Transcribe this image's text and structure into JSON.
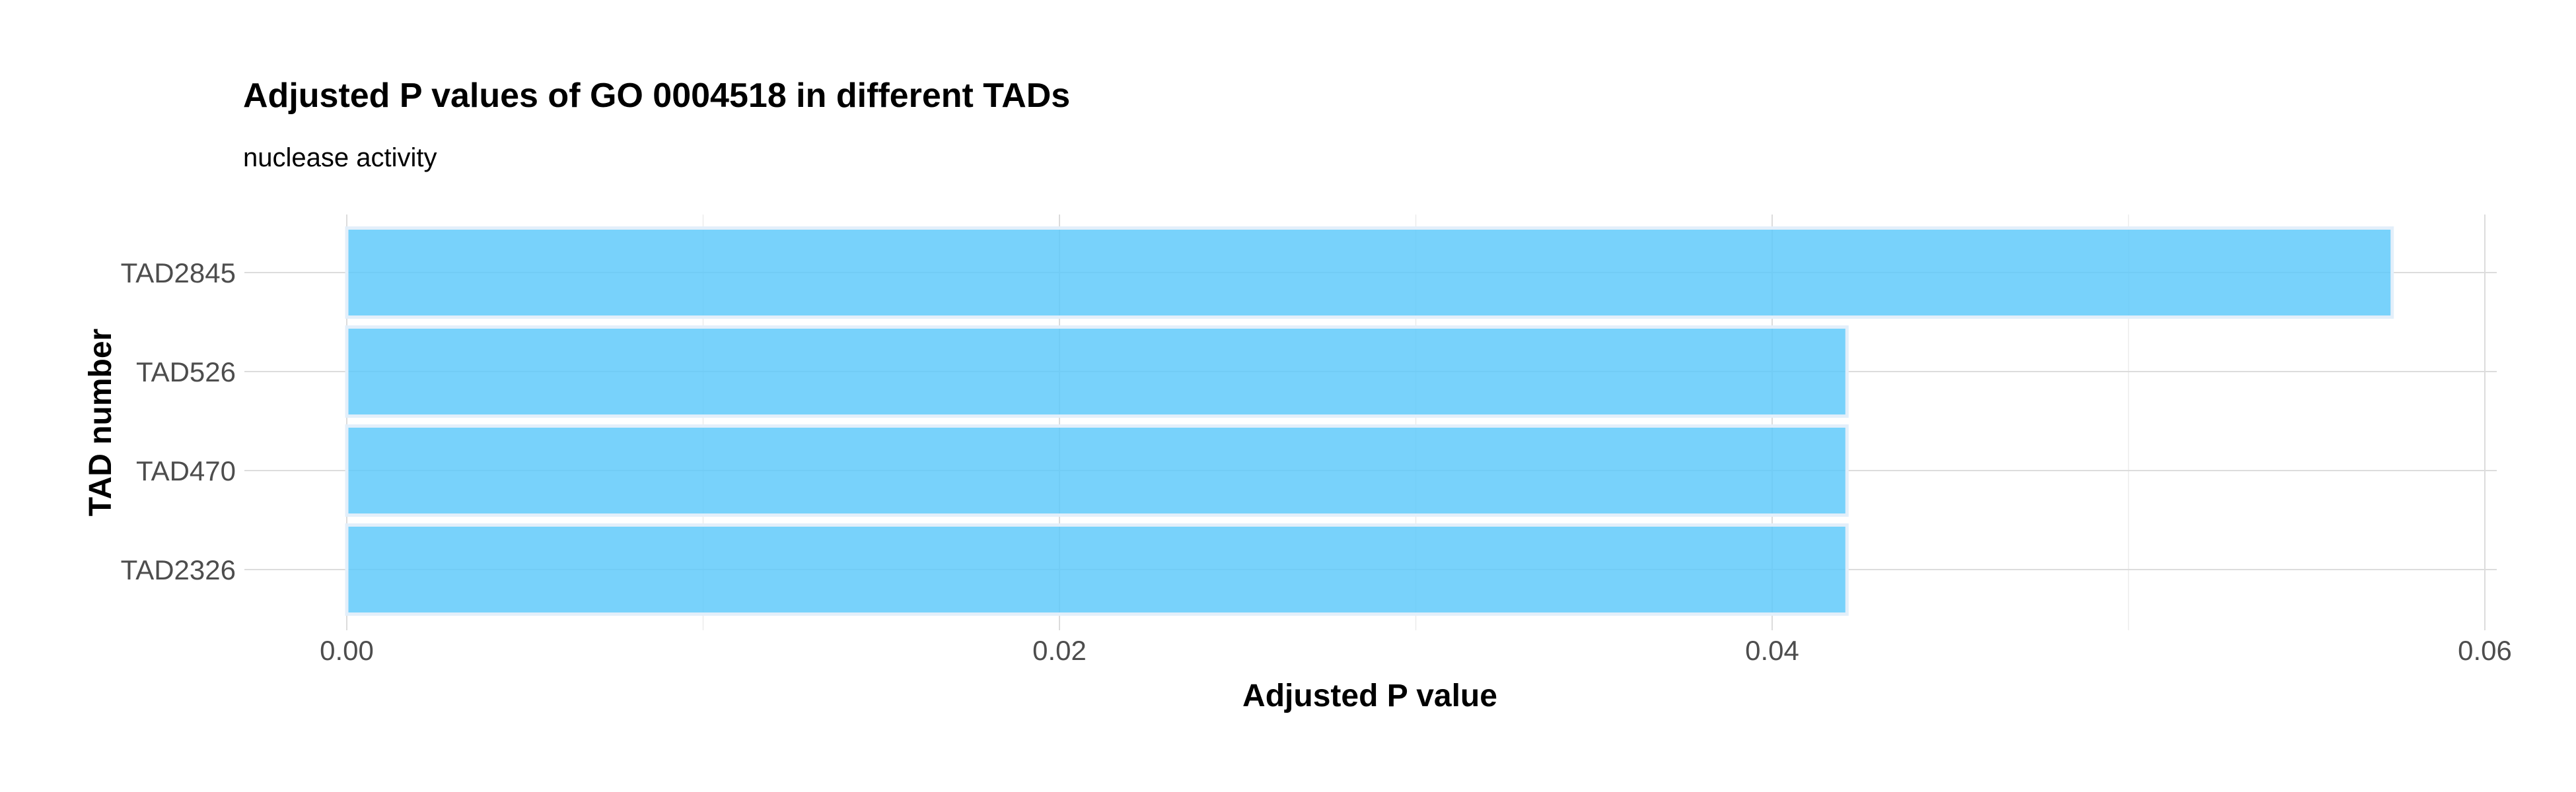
{
  "chart_data": {
    "type": "bar",
    "orientation": "horizontal",
    "title": "Adjusted P values of GO 0004518 in different TADs",
    "subtitle": "nuclease activity",
    "xlabel": "Adjusted P value",
    "ylabel": "TAD number",
    "categories": [
      "TAD2845",
      "TAD526",
      "TAD470",
      "TAD2326"
    ],
    "values": [
      0.0574,
      0.0421,
      0.0421,
      0.0421
    ],
    "xlim": [
      0,
      0.06
    ],
    "x_ticks": [
      0.0,
      0.02,
      0.04,
      0.06
    ],
    "x_tick_labels": [
      "0.00",
      "0.02",
      "0.04",
      "0.06"
    ],
    "grid": true,
    "legend": "none",
    "bar_color": "#5ac8fa"
  }
}
